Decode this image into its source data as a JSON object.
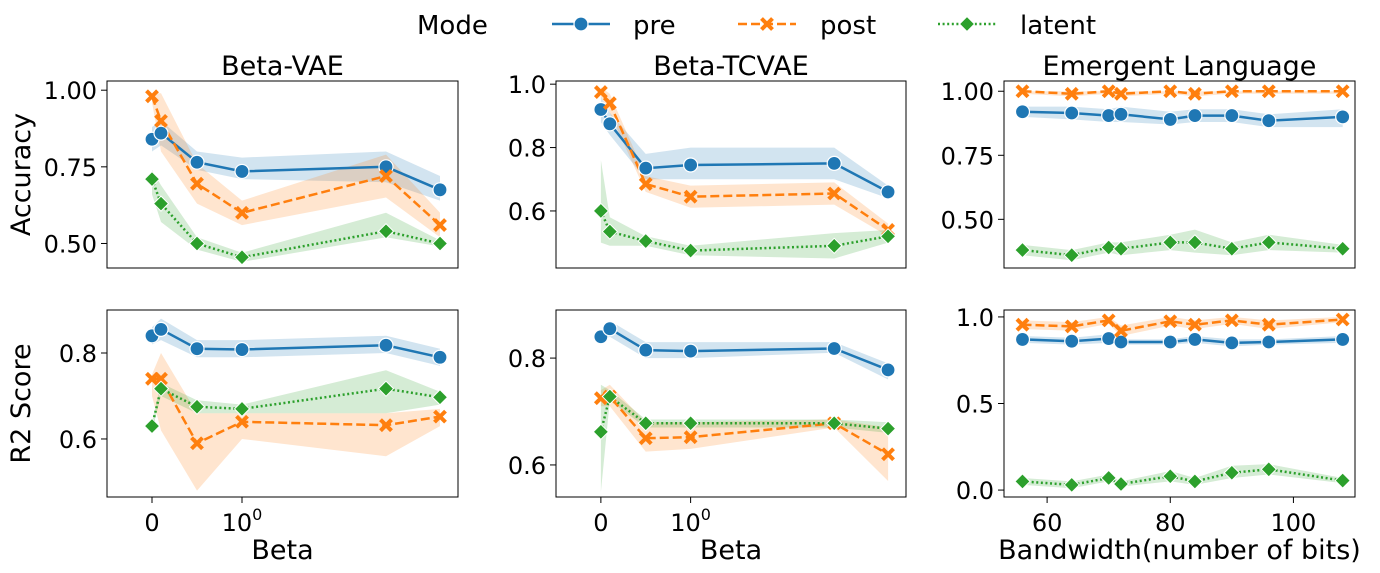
{
  "colors": {
    "pre": "#1f77b4",
    "post": "#ff7f0e",
    "latent": "#2ca02c"
  },
  "legend": {
    "title": "Mode",
    "entries": [
      {
        "key": "pre",
        "label": "pre"
      },
      {
        "key": "post",
        "label": "post"
      },
      {
        "key": "latent",
        "label": "latent"
      }
    ]
  },
  "chart_data": [
    {
      "id": "vae-acc",
      "type": "line",
      "title": "Beta-VAE",
      "ylabel": "Accuracy",
      "xlabel": "",
      "xscale": "symlog",
      "xlim": [
        -0.5,
        3.4
      ],
      "ylim": [
        0.42,
        1.03
      ],
      "yticks": [
        0.5,
        0.75,
        1.0
      ],
      "ytick_labels": [
        "0.50",
        "0.75",
        "1.00"
      ],
      "xticks": [],
      "xtick_labels": [],
      "x": [
        0,
        0.1,
        0.5,
        1.0,
        2.6,
        3.2
      ],
      "series": [
        {
          "name": "pre",
          "values": [
            0.84,
            0.86,
            0.765,
            0.735,
            0.75,
            0.675
          ],
          "lower": [
            0.8,
            0.82,
            0.74,
            0.71,
            0.7,
            0.64
          ],
          "upper": [
            0.88,
            0.9,
            0.8,
            0.78,
            0.8,
            0.72
          ]
        },
        {
          "name": "post",
          "values": [
            0.98,
            0.9,
            0.695,
            0.6,
            0.72,
            0.56
          ],
          "lower": [
            0.96,
            0.8,
            0.63,
            0.56,
            0.65,
            0.52
          ],
          "upper": [
            0.99,
            0.99,
            0.76,
            0.64,
            0.79,
            0.6
          ]
        },
        {
          "name": "latent",
          "values": [
            0.71,
            0.63,
            0.5,
            0.455,
            0.54,
            0.5
          ],
          "lower": [
            0.66,
            0.57,
            0.48,
            0.44,
            0.52,
            0.49
          ],
          "upper": [
            0.74,
            0.69,
            0.52,
            0.47,
            0.6,
            0.51
          ]
        }
      ]
    },
    {
      "id": "tc-acc",
      "type": "line",
      "title": "Beta-TCVAE",
      "ylabel": "",
      "xlabel": "",
      "xscale": "symlog",
      "xlim": [
        -0.5,
        3.4
      ],
      "ylim": [
        0.42,
        1.01
      ],
      "yticks": [
        0.6,
        0.8,
        1.0
      ],
      "ytick_labels": [
        "0.6",
        "0.8",
        "1.0"
      ],
      "xticks": [],
      "xtick_labels": [],
      "x": [
        0,
        0.1,
        0.5,
        1.0,
        2.6,
        3.2
      ],
      "series": [
        {
          "name": "pre",
          "values": [
            0.92,
            0.875,
            0.735,
            0.745,
            0.75,
            0.66
          ],
          "lower": [
            0.88,
            0.84,
            0.7,
            0.7,
            0.7,
            0.64
          ],
          "upper": [
            0.96,
            0.91,
            0.78,
            0.8,
            0.8,
            0.68
          ]
        },
        {
          "name": "post",
          "values": [
            0.975,
            0.94,
            0.685,
            0.645,
            0.655,
            0.54
          ],
          "lower": [
            0.96,
            0.91,
            0.66,
            0.61,
            0.62,
            0.52
          ],
          "upper": [
            0.99,
            0.97,
            0.71,
            0.68,
            0.69,
            0.56
          ]
        },
        {
          "name": "latent",
          "values": [
            0.6,
            0.535,
            0.505,
            0.475,
            0.49,
            0.52
          ],
          "lower": [
            0.5,
            0.49,
            0.49,
            0.46,
            0.45,
            0.5
          ],
          "upper": [
            0.76,
            0.58,
            0.52,
            0.49,
            0.53,
            0.54
          ]
        }
      ]
    },
    {
      "id": "el-acc",
      "type": "line",
      "title": "Emergent Language",
      "ylabel": "",
      "xlabel": "",
      "xscale": "linear",
      "xlim": [
        53,
        110
      ],
      "ylim": [
        0.31,
        1.04
      ],
      "yticks": [
        0.5,
        0.75,
        1.0
      ],
      "ytick_labels": [
        "0.50",
        "0.75",
        "1.00"
      ],
      "xticks": [],
      "xtick_labels": [],
      "x": [
        56,
        64,
        70,
        72,
        80,
        84,
        90,
        96,
        108
      ],
      "series": [
        {
          "name": "pre",
          "values": [
            0.92,
            0.915,
            0.905,
            0.91,
            0.89,
            0.905,
            0.905,
            0.885,
            0.9
          ],
          "lower": [
            0.9,
            0.89,
            0.88,
            0.88,
            0.87,
            0.88,
            0.88,
            0.86,
            0.86
          ],
          "upper": [
            0.94,
            0.94,
            0.93,
            0.94,
            0.92,
            0.93,
            0.93,
            0.91,
            0.93
          ]
        },
        {
          "name": "post",
          "values": [
            1.0,
            0.99,
            1.0,
            0.99,
            1.0,
            0.99,
            1.0,
            1.0,
            1.0
          ],
          "lower": [
            0.99,
            0.98,
            0.99,
            0.98,
            0.99,
            0.98,
            0.99,
            0.99,
            0.99
          ],
          "upper": [
            1.0,
            1.0,
            1.0,
            1.0,
            1.0,
            1.0,
            1.0,
            1.0,
            1.0
          ]
        },
        {
          "name": "latent",
          "values": [
            0.38,
            0.36,
            0.39,
            0.385,
            0.41,
            0.41,
            0.385,
            0.41,
            0.385
          ],
          "lower": [
            0.36,
            0.34,
            0.37,
            0.36,
            0.38,
            0.37,
            0.36,
            0.38,
            0.37
          ],
          "upper": [
            0.4,
            0.38,
            0.41,
            0.41,
            0.44,
            0.46,
            0.41,
            0.44,
            0.4
          ]
        }
      ]
    },
    {
      "id": "vae-r2",
      "type": "line",
      "title": "",
      "ylabel": "R2 Score",
      "xlabel": "Beta",
      "xscale": "symlog",
      "xlim": [
        -0.5,
        3.4
      ],
      "ylim": [
        0.465,
        0.9
      ],
      "yticks": [
        0.6,
        0.8
      ],
      "ytick_labels": [
        "0.6",
        "0.8"
      ],
      "xticks": [
        0,
        1.0
      ],
      "xtick_labels": [
        "0",
        "10"
      ],
      "xtick_sup": [
        "",
        "0"
      ],
      "x": [
        0,
        0.1,
        0.5,
        1.0,
        2.6,
        3.2
      ],
      "series": [
        {
          "name": "pre",
          "values": [
            0.84,
            0.855,
            0.81,
            0.808,
            0.818,
            0.79
          ],
          "lower": [
            0.82,
            0.83,
            0.79,
            0.79,
            0.8,
            0.77
          ],
          "upper": [
            0.86,
            0.88,
            0.83,
            0.83,
            0.84,
            0.81
          ]
        },
        {
          "name": "post",
          "values": [
            0.74,
            0.74,
            0.59,
            0.64,
            0.632,
            0.652
          ],
          "lower": [
            0.7,
            0.62,
            0.48,
            0.6,
            0.56,
            0.63
          ],
          "upper": [
            0.75,
            0.8,
            0.66,
            0.66,
            0.66,
            0.67
          ]
        },
        {
          "name": "latent",
          "values": [
            0.63,
            0.717,
            0.675,
            0.67,
            0.717,
            0.697
          ],
          "lower": [
            0.62,
            0.7,
            0.66,
            0.66,
            0.66,
            0.68
          ],
          "upper": [
            0.64,
            0.73,
            0.69,
            0.68,
            0.76,
            0.71
          ]
        }
      ]
    },
    {
      "id": "tc-r2",
      "type": "line",
      "title": "",
      "ylabel": "",
      "xlabel": "Beta",
      "xscale": "symlog",
      "xlim": [
        -0.5,
        3.4
      ],
      "ylim": [
        0.54,
        0.89
      ],
      "yticks": [
        0.6,
        0.8
      ],
      "ytick_labels": [
        "0.6",
        "0.8"
      ],
      "xticks": [
        0,
        1.0
      ],
      "xtick_labels": [
        "0",
        "10"
      ],
      "xtick_sup": [
        "",
        "0"
      ],
      "x": [
        0,
        0.1,
        0.5,
        1.0,
        2.6,
        3.2
      ],
      "series": [
        {
          "name": "pre",
          "values": [
            0.84,
            0.855,
            0.815,
            0.813,
            0.818,
            0.778
          ],
          "lower": [
            0.83,
            0.84,
            0.8,
            0.8,
            0.81,
            0.76
          ],
          "upper": [
            0.85,
            0.87,
            0.83,
            0.83,
            0.83,
            0.79
          ]
        },
        {
          "name": "post",
          "values": [
            0.725,
            0.728,
            0.65,
            0.652,
            0.678,
            0.62
          ],
          "lower": [
            0.71,
            0.71,
            0.625,
            0.63,
            0.67,
            0.57
          ],
          "upper": [
            0.74,
            0.75,
            0.68,
            0.68,
            0.685,
            0.67
          ]
        },
        {
          "name": "latent",
          "values": [
            0.662,
            0.728,
            0.678,
            0.678,
            0.678,
            0.668
          ],
          "lower": [
            0.55,
            0.72,
            0.67,
            0.67,
            0.67,
            0.66
          ],
          "upper": [
            0.75,
            0.74,
            0.685,
            0.685,
            0.685,
            0.68
          ]
        }
      ]
    },
    {
      "id": "el-r2",
      "type": "line",
      "title": "",
      "ylabel": "",
      "xlabel": "Bandwidth(number of bits)",
      "xscale": "linear",
      "xlim": [
        53,
        110
      ],
      "ylim": [
        -0.04,
        1.04
      ],
      "yticks": [
        0.0,
        0.5,
        1.0
      ],
      "ytick_labels": [
        "0.0",
        "0.5",
        "1.0"
      ],
      "xticks": [
        60,
        80,
        100
      ],
      "xtick_labels": [
        "60",
        "80",
        "100"
      ],
      "x": [
        56,
        64,
        70,
        72,
        80,
        84,
        90,
        96,
        108
      ],
      "series": [
        {
          "name": "pre",
          "values": [
            0.87,
            0.86,
            0.875,
            0.855,
            0.855,
            0.87,
            0.85,
            0.855,
            0.87
          ],
          "lower": [
            0.85,
            0.84,
            0.85,
            0.84,
            0.84,
            0.85,
            0.83,
            0.84,
            0.85
          ],
          "upper": [
            0.89,
            0.88,
            0.9,
            0.87,
            0.87,
            0.89,
            0.87,
            0.87,
            0.89
          ]
        },
        {
          "name": "post",
          "values": [
            0.955,
            0.945,
            0.98,
            0.92,
            0.975,
            0.955,
            0.98,
            0.955,
            0.985
          ],
          "lower": [
            0.93,
            0.92,
            0.96,
            0.89,
            0.95,
            0.93,
            0.96,
            0.93,
            0.97
          ],
          "upper": [
            0.98,
            0.97,
            1.0,
            0.95,
            1.0,
            0.98,
            1.0,
            0.98,
            1.0
          ]
        },
        {
          "name": "latent",
          "values": [
            0.05,
            0.03,
            0.07,
            0.035,
            0.08,
            0.05,
            0.1,
            0.12,
            0.055
          ],
          "lower": [
            0.03,
            0.01,
            0.05,
            0.02,
            0.05,
            0.03,
            0.07,
            0.09,
            0.04
          ],
          "upper": [
            0.07,
            0.05,
            0.09,
            0.05,
            0.11,
            0.07,
            0.14,
            0.15,
            0.07
          ]
        }
      ]
    }
  ]
}
